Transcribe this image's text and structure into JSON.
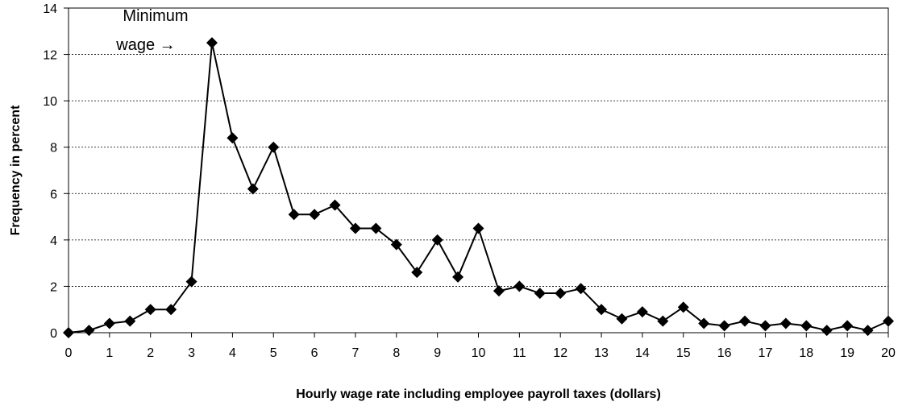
{
  "chart_data": {
    "type": "line",
    "title": "",
    "xlabel": "Hourly wage rate including employee payroll taxes (dollars)",
    "ylabel": "Frequency in percent",
    "xlim": [
      0,
      20
    ],
    "ylim": [
      0,
      14
    ],
    "x_ticks": [
      0,
      1,
      2,
      3,
      4,
      5,
      6,
      7,
      8,
      9,
      10,
      11,
      12,
      13,
      14,
      15,
      16,
      17,
      18,
      19,
      20
    ],
    "y_ticks": [
      0,
      2,
      4,
      6,
      8,
      10,
      12,
      14
    ],
    "grid": "horizontal dashed",
    "legend": "none",
    "line_color": "#000000",
    "marker": "diamond",
    "annotation": {
      "lines": [
        "Minimum",
        "wage →"
      ],
      "points_to": [
        3.5,
        12.5
      ]
    },
    "series": [
      {
        "x": [
          0,
          0.5,
          1,
          1.5,
          2,
          2.5,
          3,
          3.5,
          4,
          4.5,
          5,
          5.5,
          6,
          6.5,
          7,
          7.5,
          8,
          8.5,
          9,
          9.5,
          10,
          10.5,
          11,
          11.5,
          12,
          12.5,
          13,
          13.5,
          14,
          14.5,
          15,
          15.5,
          16,
          16.5,
          17,
          17.5,
          18,
          18.5,
          19,
          19.5,
          20
        ],
        "y": [
          0,
          0.1,
          0.4,
          0.5,
          1.0,
          1.0,
          2.2,
          12.5,
          8.4,
          6.2,
          8.0,
          5.1,
          5.1,
          5.5,
          4.5,
          4.5,
          3.8,
          2.6,
          4.0,
          2.4,
          4.5,
          1.8,
          2.0,
          1.7,
          1.7,
          1.9,
          1.0,
          0.6,
          0.9,
          0.5,
          1.1,
          0.4,
          0.3,
          0.5,
          0.3,
          0.4,
          0.3,
          0.1,
          0.3,
          0.1,
          0.5
        ]
      }
    ]
  }
}
